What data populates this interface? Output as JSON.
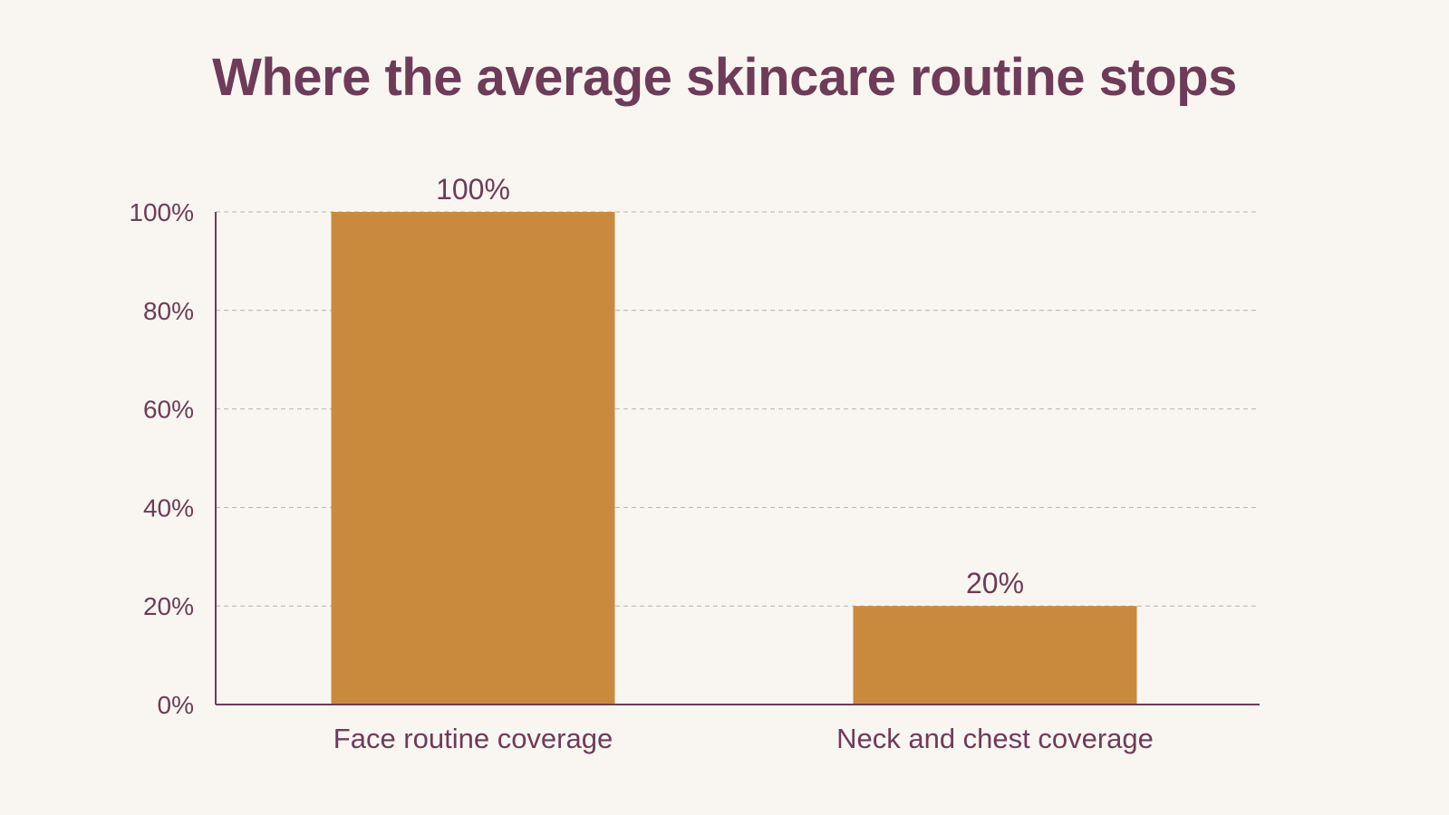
{
  "colors": {
    "background": "#f9f6f1",
    "bar": "#c98a3e",
    "text": "#6e3b58",
    "axis": "#6e3b58",
    "grid": "#b8b2ad"
  },
  "chart_data": {
    "type": "bar",
    "title": "Where the average skincare routine stops",
    "categories": [
      "Face routine coverage",
      "Neck and chest coverage"
    ],
    "values": [
      100,
      20
    ],
    "value_labels": [
      "100%",
      "20%"
    ],
    "xlabel": "",
    "ylabel": "",
    "ylim": [
      0,
      100
    ],
    "yticks": [
      0,
      20,
      40,
      60,
      80,
      100
    ],
    "ytick_labels": [
      "0%",
      "20%",
      "40%",
      "60%",
      "80%",
      "100%"
    ],
    "grid": true,
    "grid_style": "dashed",
    "legend": "none"
  }
}
